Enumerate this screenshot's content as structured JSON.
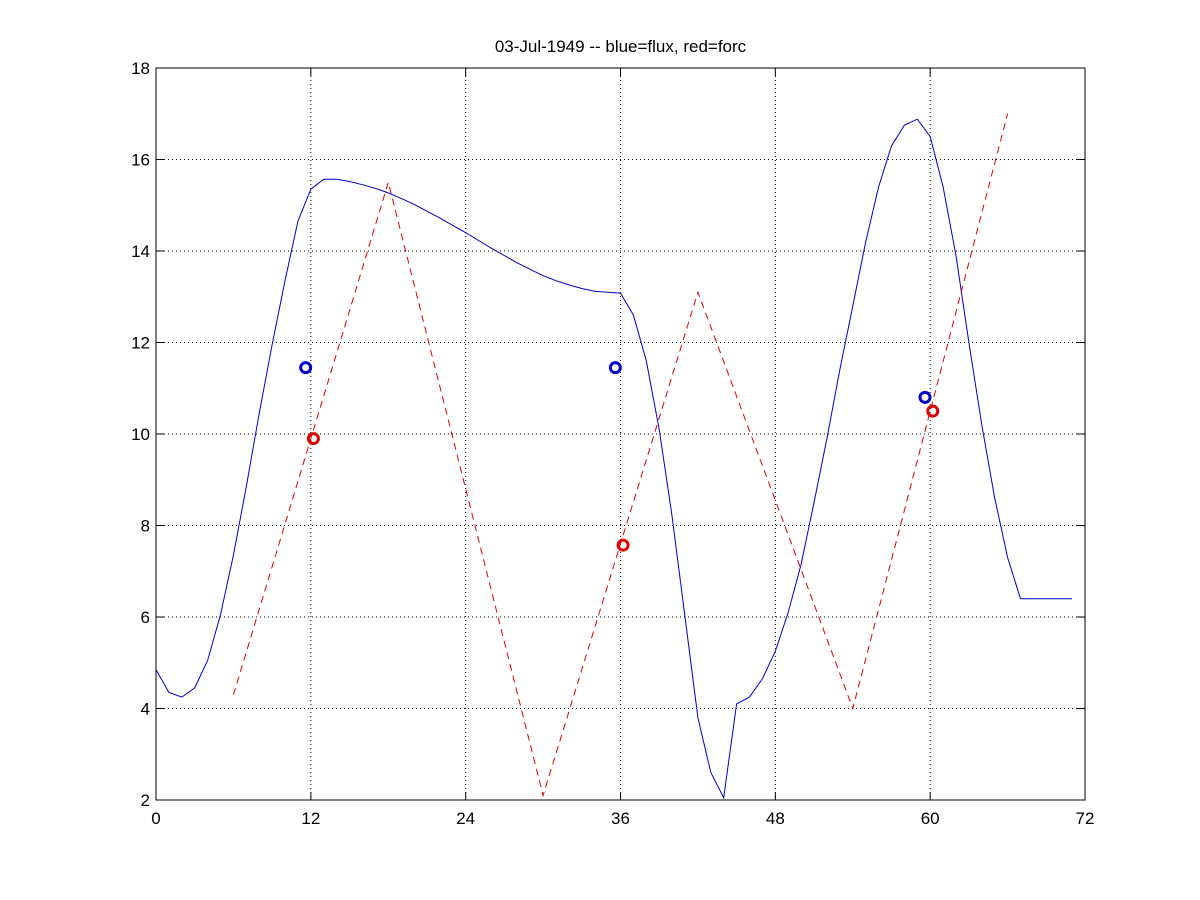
{
  "chart_data": {
    "type": "line",
    "title": "03-Jul-1949 -- blue=flux, red=forc",
    "xlabel": "",
    "ylabel": "",
    "xlim": [
      0,
      72
    ],
    "ylim": [
      2,
      18
    ],
    "xticks": [
      0,
      12,
      24,
      36,
      48,
      60,
      72
    ],
    "yticks": [
      2,
      4,
      6,
      8,
      10,
      12,
      14,
      16,
      18
    ],
    "grid": true,
    "series": [
      {
        "color": "#0000cc",
        "style": "solid",
        "x": [
          0,
          1,
          2,
          3,
          4,
          5,
          6,
          7,
          8,
          9,
          10,
          11,
          12,
          13,
          14,
          15,
          16,
          17,
          18,
          19,
          20,
          21,
          22,
          23,
          24,
          25,
          26,
          27,
          28,
          29,
          30,
          31,
          32,
          33,
          34,
          35,
          36,
          37,
          38,
          39,
          40,
          41,
          42,
          43,
          44,
          45,
          46,
          47,
          48,
          49,
          50,
          51,
          52,
          53,
          54,
          55,
          56,
          57,
          58,
          59,
          60,
          61,
          62,
          63,
          64,
          65,
          66,
          67,
          68,
          69,
          70,
          71
        ],
        "y": [
          4.85,
          4.35,
          4.25,
          4.45,
          5.05,
          6.05,
          7.35,
          8.85,
          10.45,
          11.95,
          13.35,
          14.65,
          15.35,
          15.57,
          15.57,
          15.52,
          15.45,
          15.37,
          15.27,
          15.15,
          15.02,
          14.87,
          14.72,
          14.56,
          14.4,
          14.23,
          14.06,
          13.9,
          13.74,
          13.6,
          13.46,
          13.35,
          13.26,
          13.18,
          13.12,
          13.1,
          13.08,
          12.6,
          11.6,
          10.1,
          8.2,
          6.0,
          3.8,
          2.6,
          2.05,
          4.1,
          4.25,
          4.65,
          5.25,
          6.1,
          7.15,
          8.5,
          9.9,
          11.4,
          12.8,
          14.2,
          15.4,
          16.3,
          16.75,
          16.88,
          16.5,
          15.4,
          13.9,
          12.0,
          10.2,
          8.6,
          7.3,
          6.4,
          6.4,
          6.4,
          6.4,
          6.4
        ]
      },
      {
        "color": "#dd0000",
        "style": "dashed",
        "x": [
          6,
          18,
          30,
          42,
          54,
          66
        ],
        "y": [
          4.3,
          15.5,
          2.1,
          13.1,
          4.0,
          17.0
        ]
      }
    ],
    "markers": [
      {
        "x": 11.6,
        "y": 11.45,
        "color": "#0000cc"
      },
      {
        "x": 35.6,
        "y": 11.45,
        "color": "#0000cc"
      },
      {
        "x": 59.6,
        "y": 10.8,
        "color": "#0000cc"
      },
      {
        "x": 12.2,
        "y": 9.9,
        "color": "#dd0000"
      },
      {
        "x": 36.2,
        "y": 7.57,
        "color": "#dd0000"
      },
      {
        "x": 60.2,
        "y": 10.5,
        "color": "#dd0000"
      }
    ]
  }
}
